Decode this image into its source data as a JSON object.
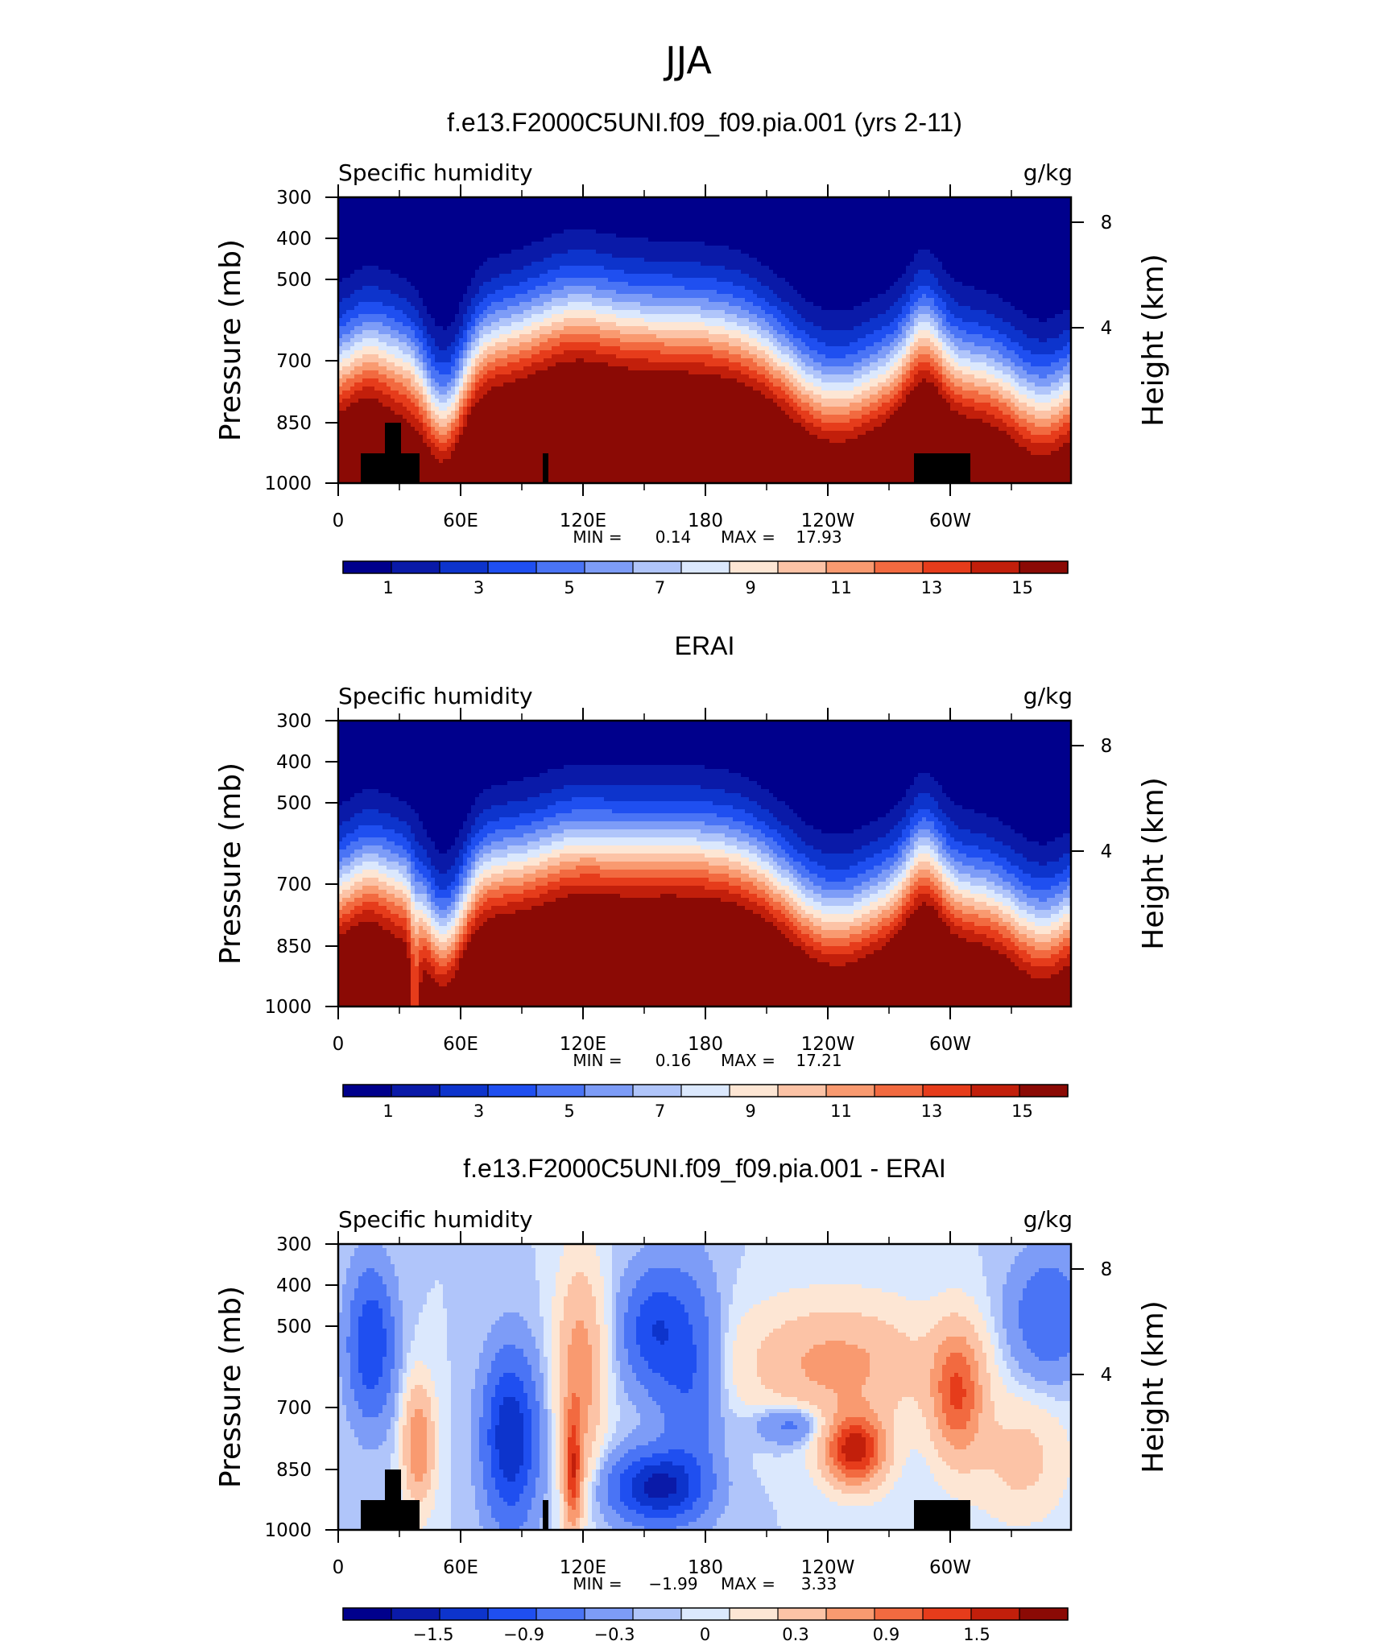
{
  "figure_title": "JJA",
  "chart_data": [
    {
      "type": "heatmap",
      "title": "f.e13.F2000C5UNI.f09_f09.pia.001 (yrs 2-11)",
      "left_subtitle": "Specific humidity",
      "right_subtitle": "g/kg",
      "ylabel": "Pressure (mb)",
      "ylabel_right": "Height (km)",
      "x_ticks": [
        "0",
        "60E",
        "120E",
        "180",
        "120W",
        "60W"
      ],
      "y_ticks": [
        "300",
        "400",
        "500",
        "700",
        "850",
        "1000"
      ],
      "y2_ticks": [
        "8",
        "4"
      ],
      "ylim": [
        1000,
        300
      ],
      "stats": {
        "min_label": "MIN =",
        "min": "0.14",
        "max_label": "MAX =",
        "max": "17.93"
      },
      "colorbar_labels": [
        "1",
        "3",
        "5",
        "7",
        "9",
        "11",
        "13",
        "15"
      ],
      "colorbar_colors": [
        "#00008c",
        "#0a1aa8",
        "#0d34cc",
        "#1f4ff0",
        "#4a74f5",
        "#7d9cf7",
        "#b0c5fa",
        "#dbe8fd",
        "#fde6d4",
        "#fcc3a6",
        "#f99a70",
        "#f26a40",
        "#e63c1b",
        "#c21f0b",
        "#8b0a05"
      ],
      "field_range": [
        0.14,
        17.93
      ]
    },
    {
      "type": "heatmap",
      "title": "ERAI",
      "left_subtitle": "Specific humidity",
      "right_subtitle": "g/kg",
      "ylabel": "Pressure (mb)",
      "ylabel_right": "Height (km)",
      "x_ticks": [
        "0",
        "60E",
        "120E",
        "180",
        "120W",
        "60W"
      ],
      "y_ticks": [
        "300",
        "400",
        "500",
        "700",
        "850",
        "1000"
      ],
      "y2_ticks": [
        "8",
        "4"
      ],
      "ylim": [
        1000,
        300
      ],
      "stats": {
        "min_label": "MIN =",
        "min": "0.16",
        "max_label": "MAX =",
        "max": "17.21"
      },
      "colorbar_labels": [
        "1",
        "3",
        "5",
        "7",
        "9",
        "11",
        "13",
        "15"
      ],
      "colorbar_colors": [
        "#00008c",
        "#0a1aa8",
        "#0d34cc",
        "#1f4ff0",
        "#4a74f5",
        "#7d9cf7",
        "#b0c5fa",
        "#dbe8fd",
        "#fde6d4",
        "#fcc3a6",
        "#f99a70",
        "#f26a40",
        "#e63c1b",
        "#c21f0b",
        "#8b0a05"
      ],
      "field_range": [
        0.16,
        17.21
      ]
    },
    {
      "type": "heatmap",
      "title": "f.e13.F2000C5UNI.f09_f09.pia.001 - ERAI",
      "left_subtitle": "Specific humidity",
      "right_subtitle": "g/kg",
      "ylabel": "Pressure (mb)",
      "ylabel_right": "Height (km)",
      "x_ticks": [
        "0",
        "60E",
        "120E",
        "180",
        "120W",
        "60W"
      ],
      "y_ticks": [
        "300",
        "400",
        "500",
        "700",
        "850",
        "1000"
      ],
      "y2_ticks": [
        "8",
        "4"
      ],
      "ylim": [
        1000,
        300
      ],
      "stats": {
        "min_label": "MIN =",
        "min": "−1.99",
        "max_label": "MAX =",
        "max": "3.33"
      },
      "colorbar_labels": [
        "−1.5",
        "−0.9",
        "−0.3",
        "0",
        "0.3",
        "0.9",
        "1.5"
      ],
      "colorbar_colors": [
        "#00008c",
        "#0a1aa8",
        "#0d34cc",
        "#1f4ff0",
        "#4a74f5",
        "#7d9cf7",
        "#b0c5fa",
        "#dbe8fd",
        "#fde6d4",
        "#fcc3a6",
        "#f99a70",
        "#f26a40",
        "#e63c1b",
        "#c21f0b",
        "#8b0a05"
      ],
      "field_range": [
        -1.99,
        3.33
      ]
    }
  ]
}
